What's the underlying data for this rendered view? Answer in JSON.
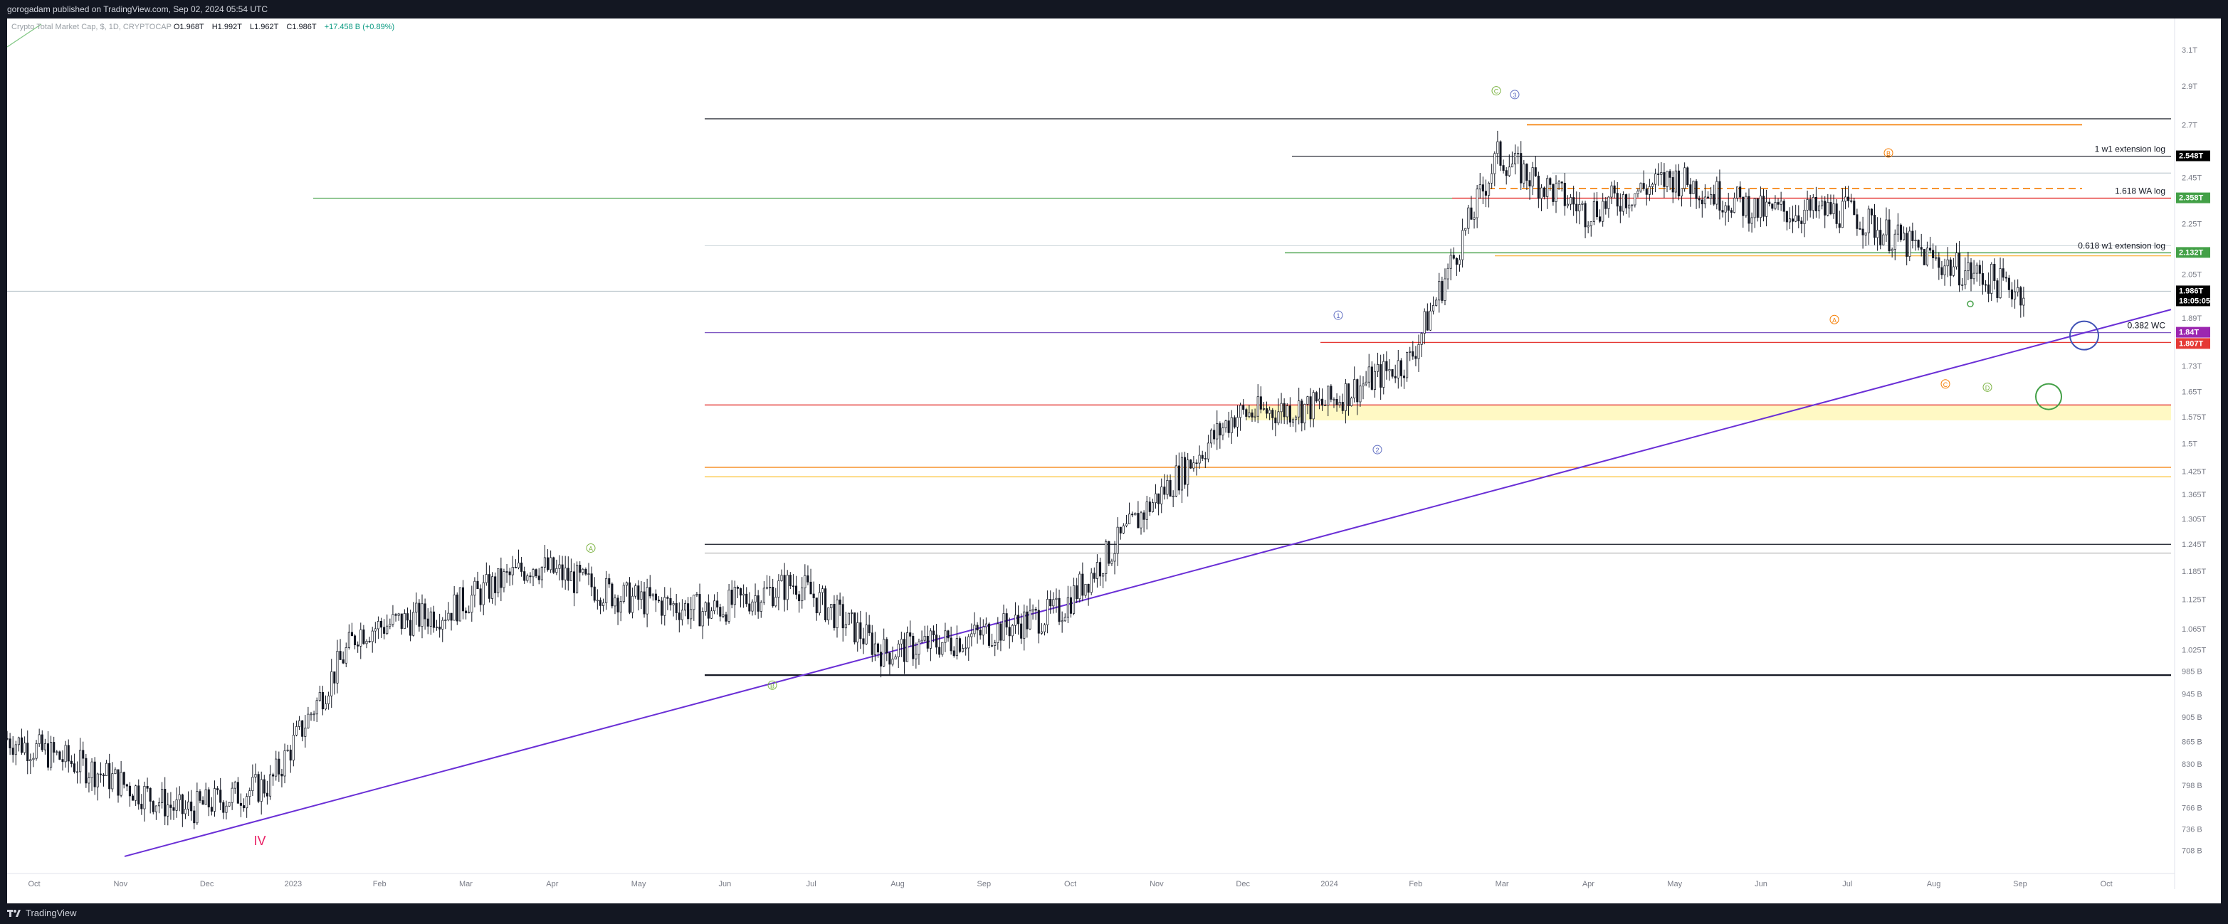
{
  "header": {
    "text": "gorogadam published on TradingView.com, Sep 02, 2024 05:54 UTC"
  },
  "legend": {
    "symbol": "Crypto Total Market Cap, $, 1D, CRYPTOCAP",
    "open_k": "O",
    "open_v": "1.968T",
    "high_k": "H",
    "high_v": "1.992T",
    "low_k": "L",
    "low_v": "1.962T",
    "close_k": "C",
    "close_v": "1.986T",
    "change": "+17.458 B (+0.89%)"
  },
  "footer": {
    "brand": "TradingView"
  },
  "colors": {
    "background": "#ffffff",
    "frame": "#131722",
    "candle": "#131722",
    "trendline": "#6a2fd6",
    "level_red": "#e53935",
    "level_green": "#43a047",
    "level_orange": "#f57c00",
    "level_purple": "#7e57c2",
    "zone_yellow": "#fff59d"
  },
  "chart_data": {
    "type": "candlestick",
    "x_ticks": [
      "Oct",
      "Nov",
      "Dec",
      "2023",
      "Feb",
      "Mar",
      "Apr",
      "May",
      "Jun",
      "Jul",
      "Aug",
      "Sep",
      "Oct",
      "Nov",
      "Dec",
      "2024",
      "Feb",
      "Mar",
      "Apr",
      "May",
      "Jun",
      "Jul",
      "Aug",
      "Sep",
      "Oct"
    ],
    "y_scale": "log",
    "y_ticks": [
      "3.1T",
      "2.9T",
      "2.7T",
      "2.45T",
      "2.25T",
      "2.05T",
      "1.89T",
      "1.73T",
      "1.65T",
      "1.575T",
      "1.5T",
      "1.425T",
      "1.365T",
      "1.305T",
      "1.245T",
      "1.185T",
      "1.125T",
      "1.065T",
      "1.025T",
      "985 B",
      "945 B",
      "905 B",
      "865 B",
      "830 B",
      "798 B",
      "766 B",
      "736 B",
      "708 B"
    ],
    "y_tick_values": [
      3.1,
      2.9,
      2.7,
      2.45,
      2.25,
      2.05,
      1.89,
      1.73,
      1.65,
      1.575,
      1.5,
      1.425,
      1.365,
      1.305,
      1.245,
      1.185,
      1.125,
      1.065,
      1.025,
      0.985,
      0.945,
      0.905,
      0.865,
      0.83,
      0.798,
      0.766,
      0.736,
      0.708
    ],
    "ylim": [
      0.68,
      3.2
    ],
    "candles_monthly_close": [
      [
        "Oct",
        0.87
      ],
      [
        "Nov",
        0.82
      ],
      [
        "Dec",
        0.76
      ],
      [
        "2023",
        0.8
      ],
      [
        "Feb",
        1.06
      ],
      [
        "Mar",
        1.1
      ],
      [
        "Apr",
        1.2
      ],
      [
        "May",
        1.13
      ],
      [
        "Jun",
        1.1
      ],
      [
        "Jul",
        1.16
      ],
      [
        "Aug",
        1.02
      ],
      [
        "Sep",
        1.05
      ],
      [
        "Oct",
        1.1
      ],
      [
        "Nov",
        1.33
      ],
      [
        "Dec",
        1.58
      ],
      [
        "2024",
        1.61
      ],
      [
        "Feb",
        1.75
      ],
      [
        "Mar",
        2.55
      ],
      [
        "Apr",
        2.3
      ],
      [
        "May",
        2.45
      ],
      [
        "Jun",
        2.3
      ],
      [
        "Jul",
        2.3
      ],
      [
        "Aug",
        2.1
      ],
      [
        "Sep",
        1.986
      ]
    ],
    "price_labels": [
      {
        "text": "2.548T",
        "value": 2.548,
        "color": "#000000"
      },
      {
        "text": "2.358T",
        "value": 2.358,
        "color": "#43a047"
      },
      {
        "text": "2.132T",
        "value": 2.132,
        "color": "#43a047"
      },
      {
        "text": "1.986T",
        "value": 1.986,
        "color": "#000000"
      },
      {
        "text": "18:05:05",
        "value": 1.96,
        "color": "#000000"
      },
      {
        "text": "1.84T",
        "value": 1.84,
        "color": "#9c27b0"
      },
      {
        "text": "1.807T",
        "value": 1.807,
        "color": "#e53935"
      }
    ],
    "level_annotations": [
      {
        "text": "1 w1 extension log",
        "value": 2.548
      },
      {
        "text": "1.618 WA log",
        "value": 2.358
      },
      {
        "text": "0.618 w1 extension log",
        "value": 2.132
      },
      {
        "text": "0.382 WC",
        "value": 1.84
      }
    ],
    "wave_labels": [
      {
        "text": "A",
        "color": "#7cb342"
      },
      {
        "text": "B",
        "color": "#7cb342"
      },
      {
        "text": "C",
        "color": "#7cb342"
      },
      {
        "text": "D",
        "color": "#7cb342"
      },
      {
        "text": "1",
        "color": "#5c6bc0"
      },
      {
        "text": "2",
        "color": "#5c6bc0"
      },
      {
        "text": "3",
        "color": "#5c6bc0"
      },
      {
        "text": "A",
        "color": "#f57c00"
      },
      {
        "text": "B",
        "color": "#f57c00"
      },
      {
        "text": "C",
        "color": "#f57c00"
      },
      {
        "text": "IV",
        "color": "#e91e63"
      }
    ]
  }
}
